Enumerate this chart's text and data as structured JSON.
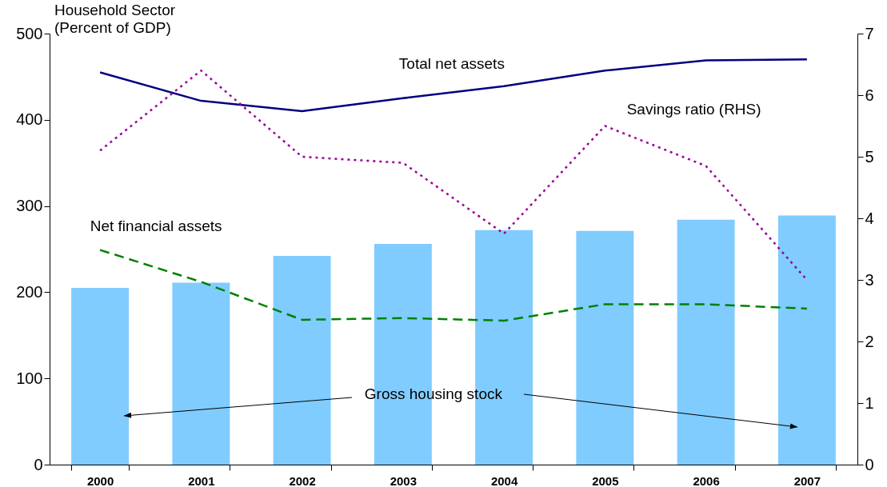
{
  "chart_data": {
    "type": "bar",
    "ylabel": "Household Sector\n(Percent of GDP)",
    "categories": [
      "2000",
      "2001",
      "2002",
      "2003",
      "2004",
      "2005",
      "2006",
      "2007"
    ],
    "series": [
      {
        "name": "Gross housing stock",
        "color": "#80ccff",
        "values": [
          205,
          211,
          242,
          256,
          272,
          271,
          284,
          289
        ]
      },
      {
        "name": "Total net assets",
        "type": "line",
        "color": "#000080",
        "line_style": "solid",
        "values": [
          455,
          422,
          410,
          425,
          439,
          457,
          469,
          470
        ]
      },
      {
        "name": "Net financial assets",
        "type": "line",
        "color": "#008000",
        "line_style": "dashed",
        "values": [
          249,
          212,
          168,
          170,
          167,
          186,
          186,
          181
        ]
      },
      {
        "name": "Savings ratio (RHS)",
        "type": "line",
        "color": "#990099",
        "line_style": "dotted",
        "axis": "y2",
        "values": [
          5.1,
          6.4,
          5.0,
          4.9,
          3.75,
          5.5,
          4.85,
          3.0
        ]
      }
    ],
    "ylim": [
      0,
      500
    ],
    "yticks": [
      0,
      100,
      200,
      300,
      400,
      500
    ],
    "y2lim": [
      0,
      7
    ],
    "y2ticks": [
      0,
      1,
      2,
      3,
      4,
      5,
      6,
      7
    ],
    "grid": false,
    "legend": false
  }
}
